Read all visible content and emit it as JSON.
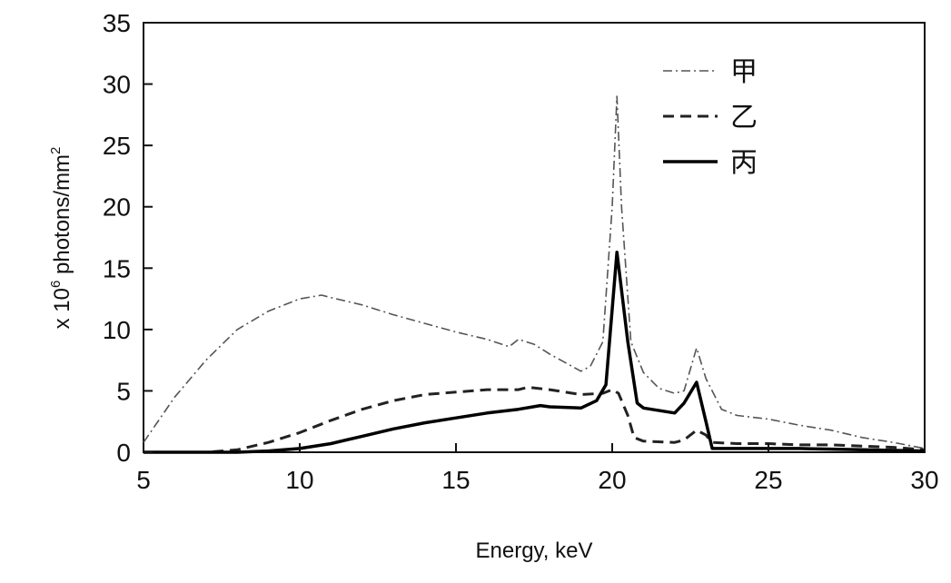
{
  "chart_data": {
    "type": "line",
    "title": "",
    "xlabel": "Energy, keV",
    "ylabel_prefix": "x 10",
    "ylabel_exp": "6",
    "ylabel_mid": " photons/mm",
    "ylabel_sup": "2",
    "xlim": [
      5,
      30
    ],
    "ylim": [
      0,
      35
    ],
    "xticks": [
      5,
      10,
      15,
      20,
      25,
      30
    ],
    "yticks": [
      0,
      5,
      10,
      15,
      20,
      25,
      30,
      35
    ],
    "grid": false,
    "legend_position": "top-right",
    "series": [
      {
        "name": "甲",
        "style": "dash-dot",
        "color": "#555555",
        "x": [
          5,
          6,
          7,
          8,
          9,
          10,
          10.7,
          11,
          12,
          13,
          14,
          15,
          16,
          16.7,
          17,
          17.5,
          18,
          18.5,
          19,
          19.3,
          19.7,
          20,
          20.15,
          20.3,
          20.6,
          21,
          21.5,
          22,
          22.3,
          22.7,
          23,
          23.5,
          24,
          25,
          26,
          27,
          28,
          29,
          30
        ],
        "values": [
          0.8,
          4.5,
          7.5,
          10,
          11.5,
          12.5,
          12.8,
          12.6,
          12,
          11.2,
          10.5,
          9.8,
          9.2,
          8.6,
          9.2,
          8.8,
          8,
          7.3,
          6.6,
          7,
          9,
          20,
          29,
          20,
          9,
          6.5,
          5.2,
          4.8,
          5,
          8.5,
          6,
          3.5,
          3,
          2.7,
          2.2,
          1.8,
          1.2,
          0.8,
          0.3
        ]
      },
      {
        "name": "乙",
        "style": "dashed",
        "color": "#222222",
        "x": [
          5,
          7,
          8,
          9,
          10,
          11,
          12,
          13,
          14,
          15,
          16,
          17,
          17.3,
          18,
          19,
          19.7,
          20,
          20.2,
          20.5,
          20.7,
          21,
          22,
          22.3,
          22.7,
          23,
          23.2,
          24,
          25,
          26,
          27,
          28,
          29,
          30
        ],
        "values": [
          0,
          0,
          0.2,
          0.8,
          1.6,
          2.6,
          3.5,
          4.2,
          4.7,
          4.9,
          5.1,
          5.1,
          5.3,
          5.1,
          4.7,
          4.8,
          5.1,
          4.8,
          3,
          1.2,
          0.9,
          0.8,
          1,
          1.8,
          1.4,
          0.8,
          0.7,
          0.7,
          0.6,
          0.6,
          0.5,
          0.4,
          0.2
        ]
      },
      {
        "name": "丙",
        "style": "solid",
        "color": "#000000",
        "x": [
          5,
          8,
          9,
          10,
          11,
          12,
          13,
          14,
          15,
          16,
          17,
          17.7,
          18,
          19,
          19.5,
          19.8,
          20.15,
          20.5,
          20.8,
          21,
          22,
          22.3,
          22.7,
          23,
          23.2,
          24,
          26,
          28,
          30
        ],
        "values": [
          0,
          0,
          0.1,
          0.3,
          0.7,
          1.3,
          1.9,
          2.4,
          2.8,
          3.2,
          3.5,
          3.8,
          3.7,
          3.6,
          4.2,
          5.5,
          16.3,
          9,
          4,
          3.6,
          3.2,
          4,
          5.7,
          2.5,
          0.3,
          0.3,
          0.3,
          0.2,
          0.1
        ]
      }
    ]
  }
}
